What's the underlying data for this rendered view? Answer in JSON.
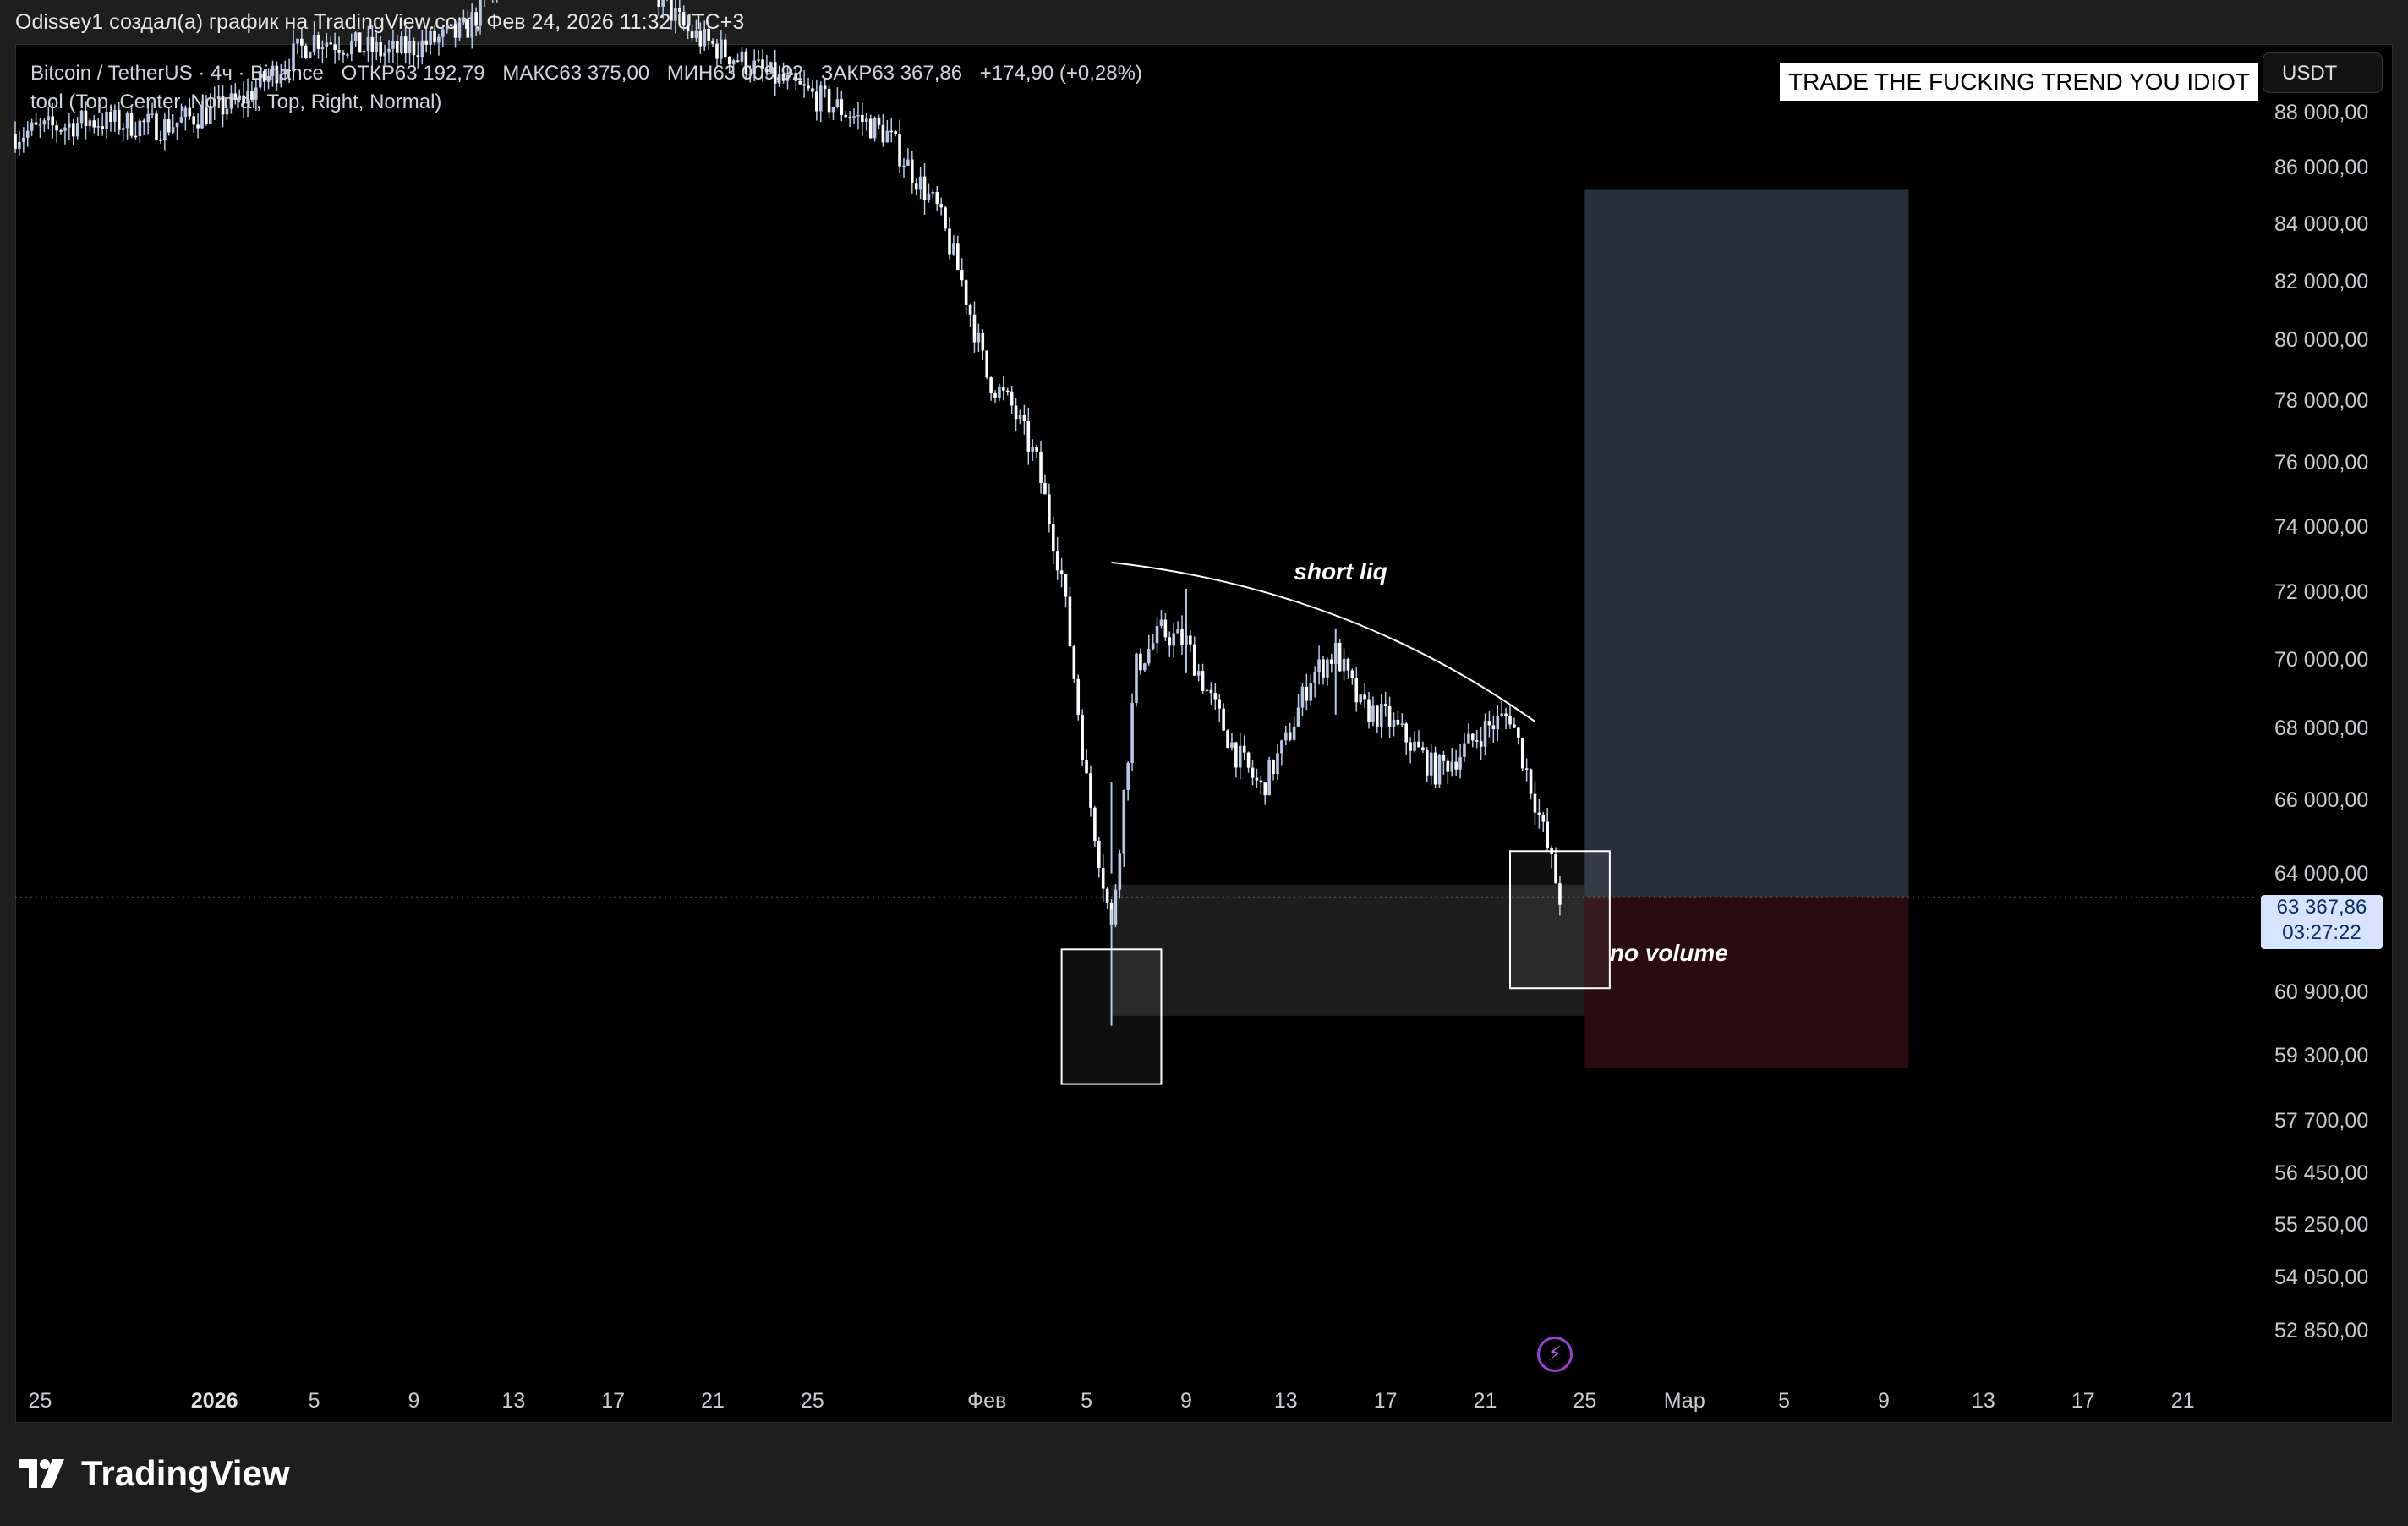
{
  "header": {
    "text": "Odissey1 создал(а) график на TradingView.com, Фев 24, 2026 11:32 UTC+3"
  },
  "legend": {
    "symbol": "Bitcoin / TetherUS · 4ч · Binance",
    "open": "ОТКР63 192,79",
    "high": "МАКС63 375,00",
    "low": "МИН63 009,92",
    "close": "ЗАКР63 367,86",
    "change": "+174,90 (+0,28%)",
    "indicator": "tool (Top, Center, Normal, Top, Right, Normal)"
  },
  "banner": "TRADE THE FUCKING TREND YOU IDIOT",
  "currency_button": "USDT",
  "last_price": {
    "value": "63 367,86",
    "countdown": "03:27:22"
  },
  "annotations": {
    "short_liq": "short liq",
    "no_volume": "no volume"
  },
  "colors": {
    "candle": "#b9c7e6",
    "long_zone": "#27303a",
    "short_zone": "#2a0c10",
    "volume_zone": "#1f1f1f"
  },
  "icons": {
    "flash": "lightning-icon",
    "logo": "tradingview-logo-icon"
  },
  "footer": {
    "logo_text": "TradingView"
  },
  "chart_data": {
    "type": "candlestick",
    "symbol": "Bitcoin / TetherUS",
    "interval": "4ч",
    "exchange": "Binance",
    "y_scale": "log",
    "ylim": [
      51800,
      90500
    ],
    "y_ticks": [
      "88 000,00",
      "86 000,00",
      "84 000,00",
      "82 000,00",
      "80 000,00",
      "78 000,00",
      "76 000,00",
      "74 000,00",
      "72 000,00",
      "70 000,00",
      "68 000,00",
      "66 000,00",
      "64 000,00",
      "60 900,00",
      "59 300,00",
      "57 700,00",
      "56 450,00",
      "55 250,00",
      "54 050,00",
      "52 850,00"
    ],
    "x_ticks": [
      "25",
      "2026",
      "5",
      "9",
      "13",
      "17",
      "21",
      "25",
      "Фев",
      "5",
      "9",
      "13",
      "17",
      "21",
      "25",
      "Мар",
      "5",
      "9",
      "13",
      "17",
      "21"
    ],
    "x_range": [
      "2025-12-24",
      "2026-03-24"
    ],
    "last_close": 63367.86,
    "price_series": [
      {
        "date": "2025-12-24",
        "close": 87200
      },
      {
        "date": "2025-12-27",
        "close": 87700
      },
      {
        "date": "2025-12-30",
        "close": 87500
      },
      {
        "date": "2026-01-02",
        "close": 88400
      },
      {
        "date": "2026-01-05",
        "close": 90800
      },
      {
        "date": "2026-01-08",
        "close": 90200
      },
      {
        "date": "2026-01-11",
        "close": 91000
      },
      {
        "date": "2026-01-14",
        "close": 95000
      },
      {
        "date": "2026-01-17",
        "close": 94500
      },
      {
        "date": "2026-01-20",
        "close": 91000
      },
      {
        "date": "2026-01-23",
        "close": 89500
      },
      {
        "date": "2026-01-26",
        "close": 88200
      },
      {
        "date": "2026-01-28",
        "close": 87200
      },
      {
        "date": "2026-01-30",
        "close": 84500
      },
      {
        "date": "2026-01-31",
        "close": 82000
      },
      {
        "date": "2026-02-01",
        "close": 78800
      },
      {
        "date": "2026-02-02",
        "close": 77800
      },
      {
        "date": "2026-02-03",
        "close": 76000
      },
      {
        "date": "2026-02-04",
        "close": 72500
      },
      {
        "date": "2026-02-05",
        "close": 66500
      },
      {
        "date": "2026-02-06",
        "close": 62500
      },
      {
        "date": "2026-02-07",
        "close": 69800
      },
      {
        "date": "2026-02-08",
        "close": 70800
      },
      {
        "date": "2026-02-09",
        "close": 70500
      },
      {
        "date": "2026-02-10",
        "close": 68800
      },
      {
        "date": "2026-02-11",
        "close": 67300
      },
      {
        "date": "2026-02-12",
        "close": 66300
      },
      {
        "date": "2026-02-13",
        "close": 67600
      },
      {
        "date": "2026-02-14",
        "close": 69500
      },
      {
        "date": "2026-02-15",
        "close": 70200
      },
      {
        "date": "2026-02-16",
        "close": 68600
      },
      {
        "date": "2026-02-17",
        "close": 68300
      },
      {
        "date": "2026-02-18",
        "close": 67600
      },
      {
        "date": "2026-02-19",
        "close": 66800
      },
      {
        "date": "2026-02-20",
        "close": 67300
      },
      {
        "date": "2026-02-21",
        "close": 68000
      },
      {
        "date": "2026-02-22",
        "close": 68400
      },
      {
        "date": "2026-02-23",
        "close": 66000
      },
      {
        "date": "2026-02-24",
        "close": 63367.86
      }
    ],
    "wick_extremes": [
      {
        "date": "2026-02-06",
        "low": 60050,
        "high": 66500
      },
      {
        "date": "2026-02-09",
        "high": 72100
      },
      {
        "date": "2026-02-15",
        "high": 70900
      }
    ],
    "drawings": {
      "long_position": {
        "from": "2026-02-25",
        "to": "2026-03-10",
        "entry": 63367.86,
        "target": 85200,
        "stop": 59000
      },
      "no_volume_zone": {
        "from": "2026-02-06",
        "to": "2026-03-03",
        "top": 63700,
        "bottom": 60300
      },
      "box_left": {
        "from": "2026-02-04",
        "to": "2026-02-08",
        "top": 62000,
        "bottom": 58600
      },
      "box_right": {
        "from": "2026-02-22",
        "to": "2026-02-26",
        "top": 64600,
        "bottom": 61000
      },
      "short_liq_curve": [
        {
          "date": "2026-02-06",
          "price": 72900
        },
        {
          "date": "2026-02-15",
          "price": 71300
        },
        {
          "date": "2026-02-23",
          "price": 68200
        }
      ]
    }
  }
}
